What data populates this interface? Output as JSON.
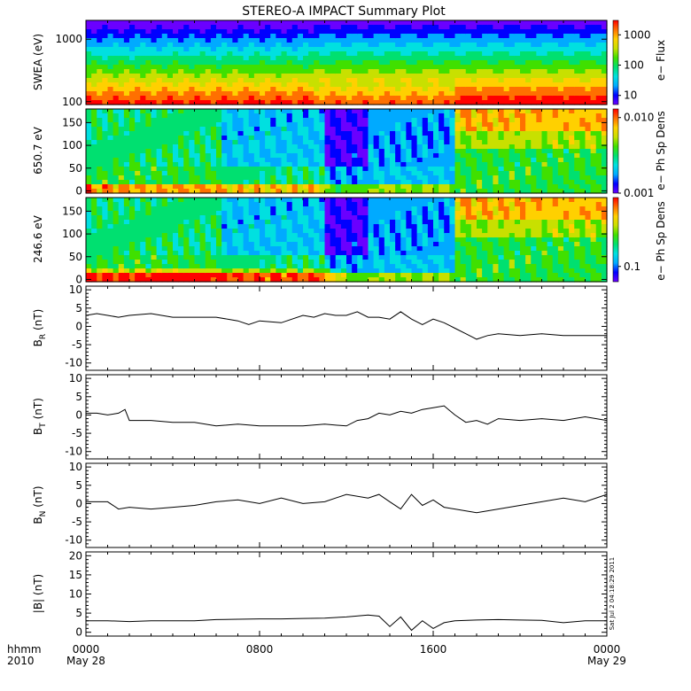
{
  "title": "STEREO-A IMPACT Summary Plot",
  "stamp": "Sat Jul  2 04:18:29 2011",
  "time_axis": {
    "row1_label": "hhmm",
    "row2_label": "2010",
    "ticks": [
      {
        "hour": 0,
        "label": "0000",
        "date": "May 28"
      },
      {
        "hour": 8,
        "label": "0800",
        "date": ""
      },
      {
        "hour": 16,
        "label": "1600",
        "date": ""
      },
      {
        "hour": 24,
        "label": "0000",
        "date": "May 29"
      }
    ]
  },
  "colors": {
    "spectrogram_scale": [
      "#6a00ff",
      "#0000ff",
      "#00aaff",
      "#00e0e0",
      "#00e070",
      "#40e000",
      "#c8e000",
      "#ffd000",
      "#ff7000",
      "#ff0000"
    ],
    "line": "#000000"
  },
  "chart_data": [
    {
      "type": "heatmap",
      "ylabel": "SWEA (eV)",
      "yscale": "log",
      "ylim": [
        90,
        2000
      ],
      "yticks": [
        {
          "v": 1000,
          "label": "1000"
        },
        {
          "v": 100,
          "label": "100"
        }
      ],
      "colorbar": {
        "label": "e− Flux",
        "scale": "log",
        "range": [
          5,
          3000
        ],
        "ticks": [
          {
            "v": 1000,
            "label": "1000"
          },
          {
            "v": 100,
            "label": "100"
          },
          {
            "v": 10,
            "label": "10"
          }
        ]
      }
    },
    {
      "type": "heatmap",
      "ylabel": "650.7 eV",
      "ylim": [
        -5,
        180
      ],
      "yticks": [
        {
          "v": 0,
          "label": "0"
        },
        {
          "v": 50,
          "label": "50"
        },
        {
          "v": 100,
          "label": "100"
        },
        {
          "v": 150,
          "label": "150"
        }
      ],
      "colorbar": {
        "label": "e− Ph Sp Dens",
        "scale": "log",
        "range": [
          0.001,
          0.013
        ],
        "ticks": [
          {
            "v": 0.01,
            "label": "0.010"
          },
          {
            "v": 0.001,
            "label": "0.001"
          }
        ]
      }
    },
    {
      "type": "heatmap",
      "ylabel": "246.6 eV",
      "ylim": [
        -5,
        180
      ],
      "yticks": [
        {
          "v": 0,
          "label": "0"
        },
        {
          "v": 50,
          "label": "50"
        },
        {
          "v": 100,
          "label": "100"
        },
        {
          "v": 150,
          "label": "150"
        }
      ],
      "colorbar": {
        "label": "e− Ph Sp Dens",
        "scale": "log",
        "range": [
          0.06,
          1.0
        ],
        "ticks": [
          {
            "v": 0.1,
            "label": "0.1"
          }
        ]
      }
    },
    {
      "type": "line",
      "ylabel": "B",
      "ysub": "R",
      "yunit": "(nT)",
      "ylim": [
        -12,
        11
      ],
      "yticks": [
        -10,
        -5,
        0,
        5,
        10
      ],
      "x_hours": [
        0,
        0.5,
        1,
        1.5,
        2,
        3,
        4,
        5,
        6,
        7,
        7.5,
        8,
        9,
        10,
        10.5,
        11,
        11.5,
        12,
        12.5,
        13,
        13.5,
        14,
        14.5,
        15,
        15.5,
        16,
        16.5,
        17,
        17.5,
        18,
        18.5,
        19,
        20,
        21,
        22,
        23,
        24
      ],
      "values": [
        3,
        3.5,
        3,
        2.5,
        3,
        3.5,
        2.5,
        2.5,
        2.5,
        1.5,
        0.5,
        1.5,
        1,
        3,
        2.5,
        3.5,
        3,
        3,
        4,
        2.5,
        2.5,
        2,
        4,
        2,
        0.5,
        2,
        1,
        -0.5,
        -2,
        -3.5,
        -2.5,
        -2,
        -2.5,
        -2,
        -2.5,
        -2.5,
        -2.5
      ]
    },
    {
      "type": "line",
      "ylabel": "B",
      "ysub": "T",
      "yunit": "(nT)",
      "ylim": [
        -12,
        11
      ],
      "yticks": [
        -10,
        -5,
        0,
        5,
        10
      ],
      "x_hours": [
        0,
        0.5,
        1,
        1.5,
        1.8,
        2,
        3,
        4,
        5,
        6,
        7,
        8,
        9,
        10,
        11,
        12,
        12.5,
        13,
        13.5,
        14,
        14.5,
        15,
        15.5,
        16,
        16.5,
        17,
        17.5,
        18,
        18.5,
        19,
        20,
        21,
        22,
        23,
        24
      ],
      "values": [
        0.5,
        0.5,
        0,
        0.5,
        1.5,
        -1.5,
        -1.5,
        -2,
        -2,
        -3,
        -2.5,
        -3,
        -3,
        -3,
        -2.5,
        -3,
        -1.5,
        -1,
        0.5,
        0,
        1,
        0.5,
        1.5,
        2,
        2.5,
        0,
        -2,
        -1.5,
        -2.5,
        -1,
        -1.5,
        -1,
        -1.5,
        -0.5,
        -1.5
      ]
    },
    {
      "type": "line",
      "ylabel": "B",
      "ysub": "N",
      "yunit": "(nT)",
      "ylim": [
        -12,
        11
      ],
      "yticks": [
        -10,
        -5,
        0,
        5,
        10
      ],
      "x_hours": [
        0,
        1,
        1.5,
        2,
        3,
        4,
        5,
        6,
        7,
        8,
        9,
        10,
        11,
        12,
        13,
        13.5,
        14,
        14.5,
        15,
        15.5,
        16,
        16.5,
        17,
        18,
        19,
        20,
        21,
        22,
        23,
        24
      ],
      "values": [
        0.5,
        0.5,
        -1.5,
        -1,
        -1.5,
        -1,
        -0.5,
        0.5,
        1,
        0,
        1.5,
        0,
        0.5,
        2.5,
        1.5,
        2.5,
        0.5,
        -1.5,
        2.5,
        -0.5,
        1,
        -1,
        -1.5,
        -2.5,
        -1.5,
        -0.5,
        0.5,
        1.5,
        0.5,
        2.5
      ]
    },
    {
      "type": "line",
      "ylabel": "|B| (nT)",
      "ylim": [
        -1,
        21
      ],
      "yticks": [
        0,
        5,
        10,
        15,
        20
      ],
      "x_hours": [
        0,
        1,
        2,
        3,
        4,
        5,
        6,
        7,
        8,
        9,
        10,
        11,
        12,
        13,
        13.5,
        14,
        14.5,
        15,
        15.5,
        16,
        16.5,
        17,
        18,
        19,
        20,
        21,
        22,
        23,
        24
      ],
      "values": [
        3,
        3,
        2.8,
        3,
        3,
        3,
        3.3,
        3.4,
        3.5,
        3.5,
        3.6,
        3.7,
        4,
        4.5,
        4.2,
        1.5,
        4,
        0.5,
        3,
        1,
        2.5,
        3,
        3.2,
        3.3,
        3.2,
        3.1,
        2.5,
        3,
        3
      ]
    }
  ]
}
